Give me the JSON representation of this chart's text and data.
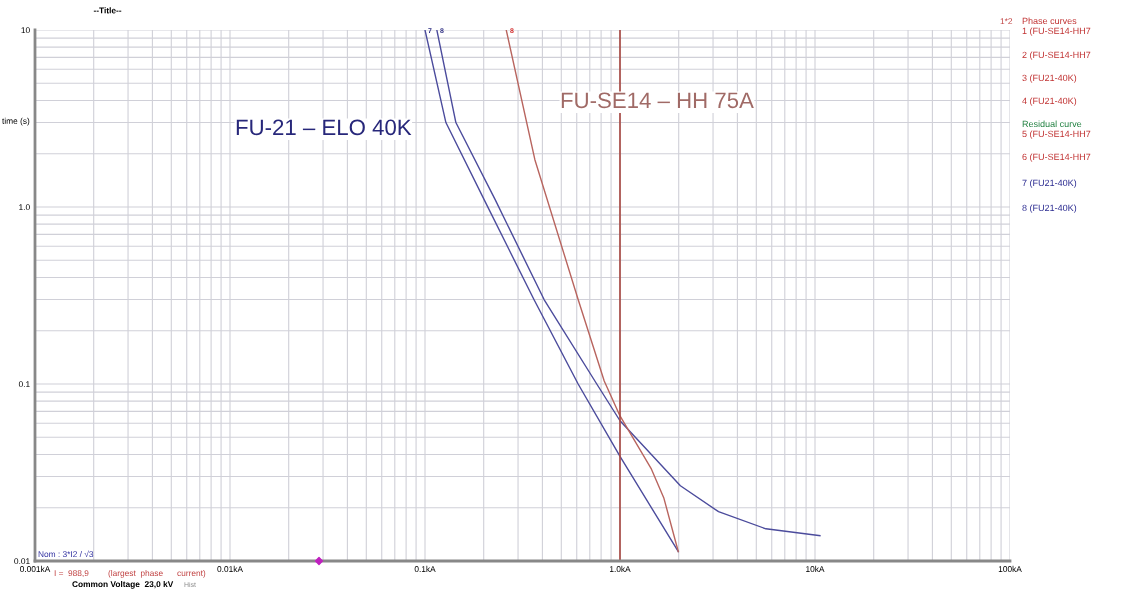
{
  "chart_data": {
    "type": "line",
    "title": "--Title--",
    "ylabel": "time (s)",
    "log": "xy",
    "grid": true,
    "line_style": "solid",
    "xlim": [
      0.001,
      100
    ],
    "xticks": [
      {
        "value": 0.001,
        "label": "0.001kA"
      },
      {
        "value": 0.01,
        "label": "0.01kA"
      },
      {
        "value": 0.1,
        "label": "0.1kA"
      },
      {
        "value": 1,
        "label": "1.0kA"
      },
      {
        "value": 10,
        "label": "10kA"
      },
      {
        "value": 100,
        "label": "100kA"
      }
    ],
    "ylim": [
      0.01,
      10
    ],
    "yticks": [
      {
        "value": 0.01,
        "label": "0.01"
      },
      {
        "value": 0.1,
        "label": "0.1"
      },
      {
        "value": 1,
        "label": "1.0"
      },
      10
    ],
    "series": [
      {
        "color": "#4b4b9c",
        "x": [
          0.1,
          0.128,
          0.201,
          0.362,
          0.61,
          1.0,
          1.99
        ],
        "values": [
          10,
          3,
          1.1,
          0.3,
          0.1,
          0.039,
          0.0113
        ]
      },
      {
        "color": "#4b4b9c",
        "x": [
          0.115,
          0.144,
          0.229,
          0.408,
          0.76,
          1.0,
          2.04,
          3.2,
          5.6,
          10.6
        ],
        "values": [
          10,
          3,
          1.1,
          0.3,
          0.1,
          0.062,
          0.0266,
          0.019,
          0.0152,
          0.0139
        ]
      },
      {
        "color": "#b8645e",
        "x": [
          0.261,
          0.366,
          0.61,
          0.83,
          1.0,
          1.45,
          1.68,
          1.99
        ],
        "values": [
          10,
          1.85,
          0.3,
          0.104,
          0.066,
          0.033,
          0.0226,
          0.0113
        ]
      },
      {
        "type": "scatter",
        "marker": "diamond",
        "color": "#c020c0",
        "x": [
          0.0286
        ],
        "values": [
          0.01
        ]
      }
    ],
    "ref_lines": [
      {
        "axis": "x",
        "value": 1.0,
        "color": "#a84a44"
      }
    ],
    "annotations": [
      "FU-21 – ELO 40K",
      "FU-SE14 – HH 75A",
      "7",
      "8",
      "8",
      "Nom : 3*I2 / √3",
      "I =",
      "988,9",
      "(largest  phase      current)",
      "Common Voltage  23,0 kV",
      "Hist",
      "1*2",
      "Phase curves",
      "1 (FU-SE14-HH7",
      "2 (FU-SE14-HH7",
      "3 (FU21-40K)",
      "4 (FU21-40K)",
      "Residual curve",
      "5 (FU-SE14-HH7",
      "6 (FU-SE14-HH7",
      "7 (FU21-40K)",
      "8 (FU21-40K)"
    ]
  }
}
